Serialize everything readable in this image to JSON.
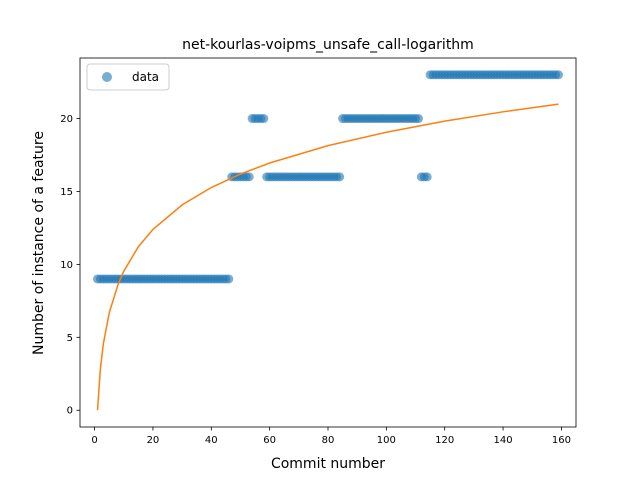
{
  "chart_data": {
    "type": "scatter",
    "title": "net-kourlas-voipms_unsafe_call-logarithm",
    "xlabel": "Commit number",
    "ylabel": "Number of instance of a feature",
    "xlim": [
      -5,
      165
    ],
    "ylim": [
      -1.15,
      24.15
    ],
    "xticks": [
      0,
      20,
      40,
      60,
      80,
      100,
      120,
      140,
      160
    ],
    "yticks": [
      0,
      5,
      10,
      15,
      20
    ],
    "legend": {
      "position": "top-left",
      "entries": [
        "data"
      ]
    },
    "grid": false,
    "colors": {
      "data": "#1f77b4",
      "fit": "#ff7f0e"
    },
    "series": [
      {
        "name": "data",
        "kind": "scatter",
        "segments": [
          {
            "x_from": 1,
            "x_to": 46,
            "y": 9
          },
          {
            "x_from": 47,
            "x_to": 53,
            "y": 16
          },
          {
            "x_from": 54,
            "x_to": 58,
            "y": 20
          },
          {
            "x_from": 59,
            "x_to": 84,
            "y": 16
          },
          {
            "x_from": 85,
            "x_to": 111,
            "y": 20
          },
          {
            "x_from": 112,
            "x_to": 114,
            "y": 16
          },
          {
            "x_from": 115,
            "x_to": 159,
            "y": 23
          }
        ]
      },
      {
        "kind": "line",
        "fit": "logarithmic",
        "x": [
          1,
          2,
          3,
          5,
          8,
          10,
          15,
          20,
          30,
          40,
          50,
          60,
          80,
          100,
          120,
          140,
          159
        ],
        "y": [
          0,
          2.87,
          4.55,
          6.66,
          8.6,
          9.53,
          11.21,
          12.4,
          14.08,
          15.27,
          16.19,
          16.95,
          18.14,
          19.06,
          19.82,
          20.46,
          20.99
        ]
      }
    ]
  }
}
